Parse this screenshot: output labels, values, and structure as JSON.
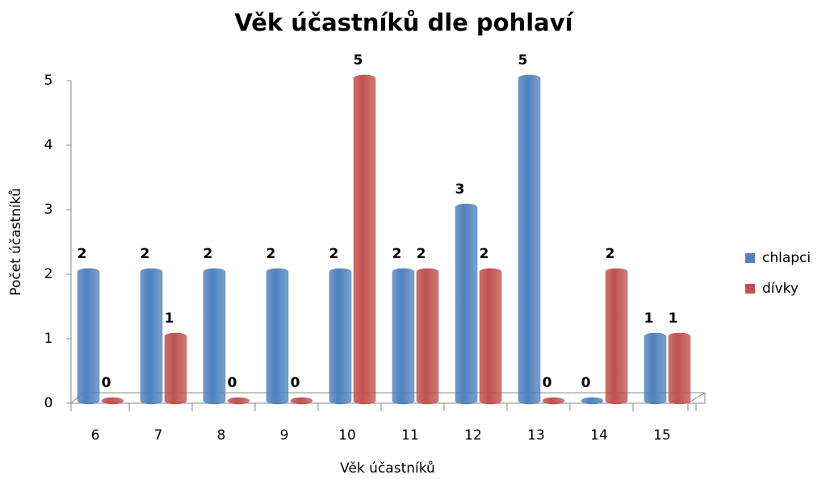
{
  "chart_data": {
    "type": "bar",
    "title": "Věk účastníků dle pohlaví",
    "x_label": "Věk účastníků",
    "y_label": "Počet účastníků",
    "categories": [
      "6",
      "7",
      "8",
      "9",
      "10",
      "11",
      "12",
      "13",
      "14",
      "15"
    ],
    "series": [
      {
        "name": "chlapci",
        "color": "#4f81bd",
        "values": [
          2,
          2,
          2,
          2,
          2,
          2,
          3,
          5,
          0,
          1
        ]
      },
      {
        "name": "dívky",
        "color": "#c0504d",
        "values": [
          0,
          1,
          0,
          0,
          5,
          2,
          2,
          0,
          2,
          1
        ]
      }
    ],
    "ylim": [
      0,
      5
    ],
    "yticks": [
      0,
      1,
      2,
      3,
      4,
      5
    ],
    "legend": "right"
  }
}
